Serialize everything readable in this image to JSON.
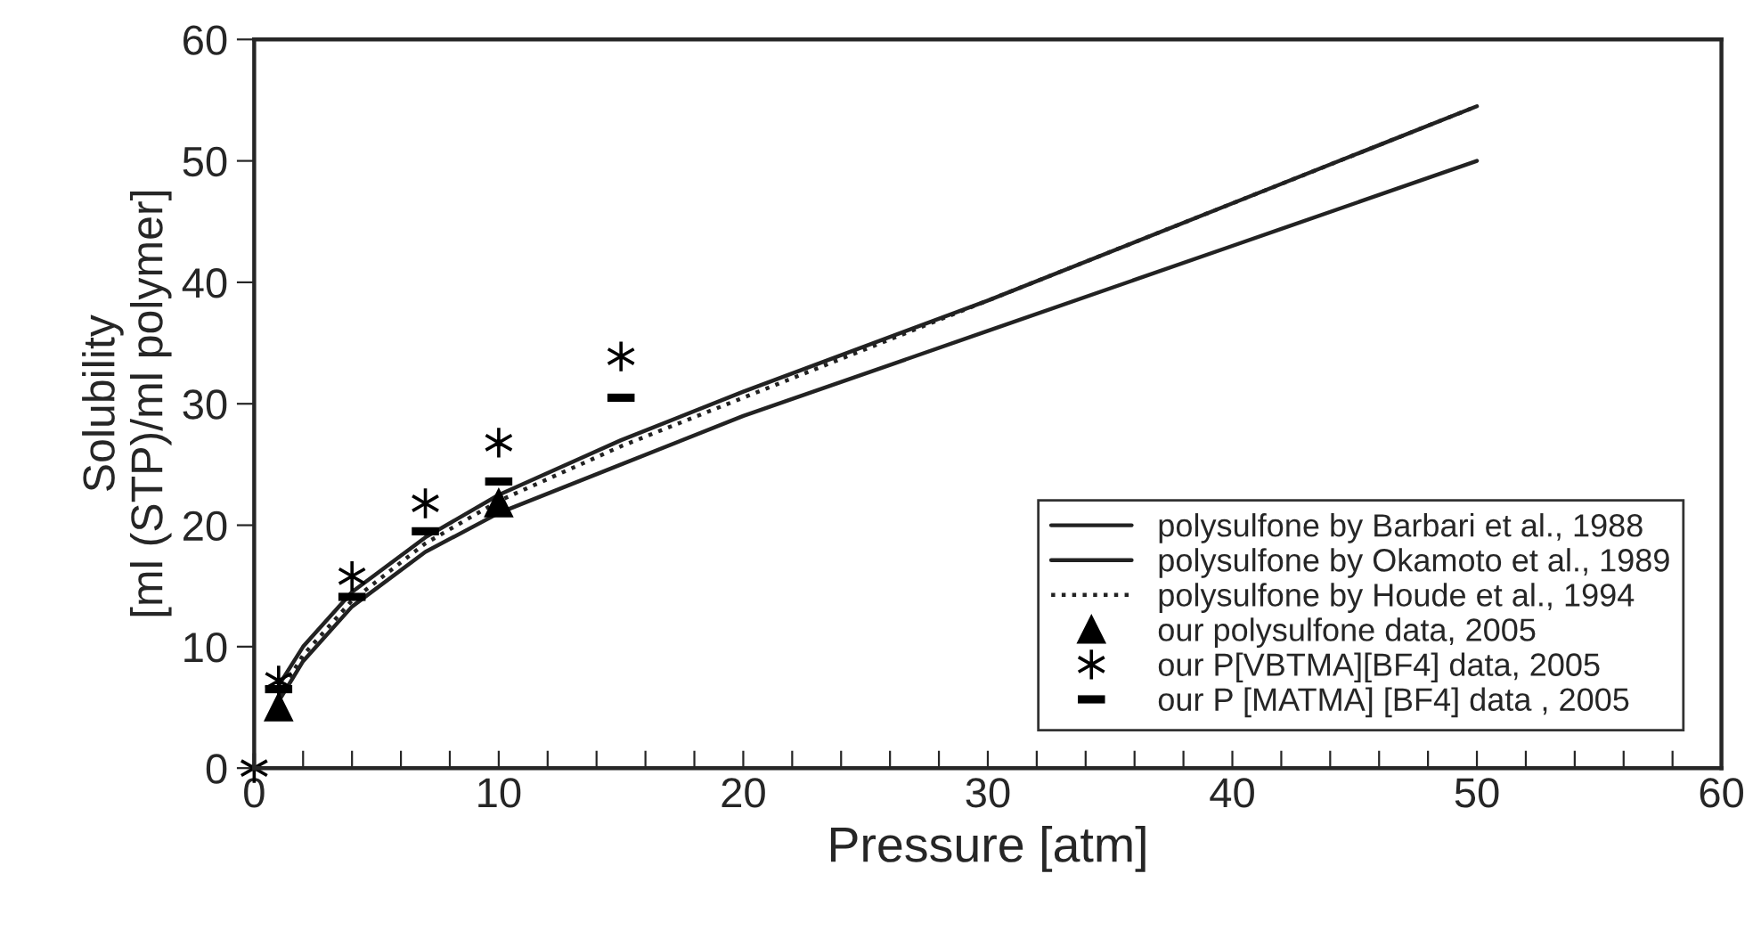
{
  "chart_data": {
    "type": "line",
    "xlabel": "Pressure [atm]",
    "ylabel": "Solubility\n[ml (STP)/ml polymer]",
    "xlim": [
      0,
      60
    ],
    "ylim": [
      0,
      60
    ],
    "xticks": [
      0,
      {
        "value": 2,
        "label": null
      },
      {
        "value": 4,
        "label": null
      },
      {
        "value": 6,
        "label": null
      },
      {
        "value": 8,
        "label": null
      },
      10,
      {
        "value": 12,
        "label": null
      },
      {
        "value": 14,
        "label": null
      },
      {
        "value": 16,
        "label": null
      },
      {
        "value": 18,
        "label": null
      },
      20,
      {
        "value": 22,
        "label": null
      },
      {
        "value": 24,
        "label": null
      },
      {
        "value": 26,
        "label": null
      },
      {
        "value": 28,
        "label": null
      },
      30,
      {
        "value": 32,
        "label": null
      },
      {
        "value": 34,
        "label": null
      },
      {
        "value": 36,
        "label": null
      },
      {
        "value": 38,
        "label": null
      },
      40,
      {
        "value": 42,
        "label": null
      },
      {
        "value": 44,
        "label": null
      },
      {
        "value": 46,
        "label": null
      },
      {
        "value": 48,
        "label": null
      },
      50,
      {
        "value": 52,
        "label": null
      },
      {
        "value": 54,
        "label": null
      },
      {
        "value": 56,
        "label": null
      },
      {
        "value": 58,
        "label": null
      },
      60
    ],
    "yticks": [
      0,
      10,
      20,
      30,
      40,
      50,
      60
    ],
    "grid": false,
    "legend": "bottom right",
    "series": [
      {
        "name": "polysulfone by Barbari et al., 1988",
        "line_style": "solid",
        "marker": "none",
        "color": "#222222",
        "x": [
          1,
          2,
          4,
          7,
          10,
          15,
          20,
          30,
          40,
          50
        ],
        "values": [
          5.5,
          8.8,
          13.3,
          17.8,
          21,
          25,
          29,
          36,
          43,
          50
        ]
      },
      {
        "name": "polysulfone by Okamoto et al., 1989",
        "line_style": "solid",
        "marker": "none",
        "color": "#222222",
        "x": [
          1,
          2,
          4,
          7,
          10,
          15,
          20,
          30,
          40,
          50
        ],
        "values": [
          6.8,
          10,
          14.5,
          19,
          22.5,
          27,
          31,
          38.5,
          46.5,
          54.5
        ]
      },
      {
        "name": "polysulfone by Houde et al., 1994",
        "line_style": "dotted",
        "marker": "none",
        "color": "#222222",
        "x": [
          1,
          2,
          4,
          7,
          10,
          15,
          20,
          30,
          40,
          50
        ],
        "values": [
          6,
          9.3,
          13.8,
          18.5,
          22,
          26.5,
          30.5,
          38.5,
          46.5,
          54.5
        ]
      },
      {
        "name": "our polysulfone data, 2005",
        "type": "scatter",
        "marker": "triangle",
        "color": "#000000",
        "x": [
          1,
          10
        ],
        "values": [
          5,
          21.8
        ]
      },
      {
        "name": "our P[VBTMA][BF4] data, 2005",
        "type": "scatter",
        "marker": "cross",
        "color": "#000000",
        "x": [
          0,
          1,
          4,
          7,
          10,
          15
        ],
        "values": [
          0,
          7.2,
          15.8,
          21.8,
          26.8,
          33.9
        ]
      },
      {
        "name": "our P [MATMA] [BF4] data , 2005",
        "type": "scatter",
        "marker": "square",
        "color": "#000000",
        "x": [
          1,
          4,
          7,
          10,
          15
        ],
        "values": [
          6.5,
          14.1,
          19.5,
          23.6,
          30.5
        ]
      }
    ]
  }
}
